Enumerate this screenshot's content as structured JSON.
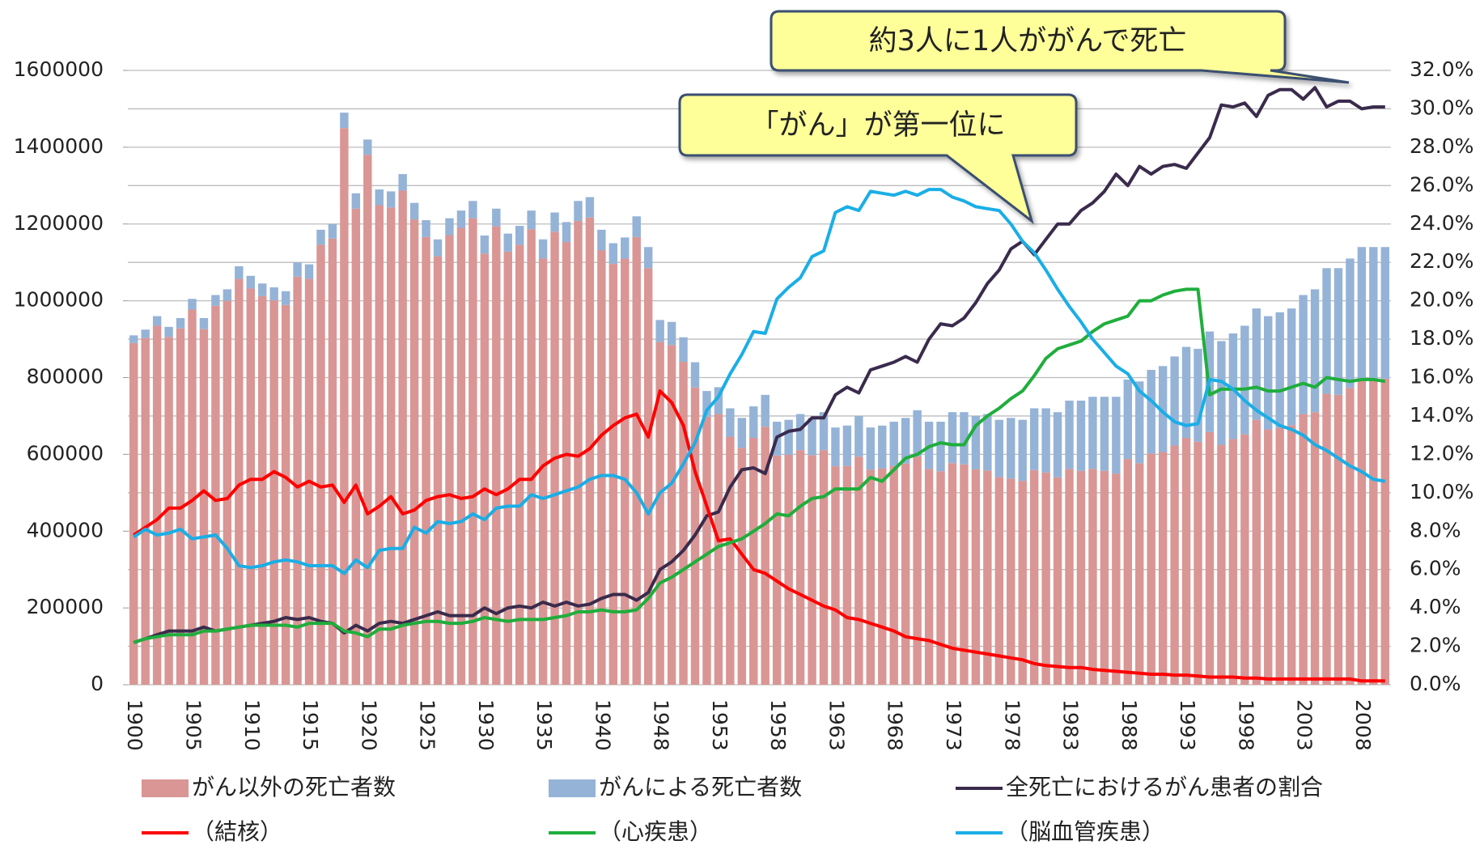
{
  "chart_data": {
    "type": "bar",
    "stacked": true,
    "annotations": [
      "約3人に1人ががんで死亡",
      "「がん」が第一位に"
    ],
    "categories": [
      "1900",
      null,
      null,
      null,
      null,
      "1905",
      null,
      null,
      null,
      null,
      "1910",
      null,
      null,
      null,
      null,
      "1915",
      null,
      null,
      null,
      null,
      "1920",
      null,
      null,
      null,
      null,
      "1925",
      null,
      null,
      null,
      null,
      "1930",
      null,
      null,
      null,
      null,
      "1935",
      null,
      null,
      null,
      null,
      "1940",
      null,
      null,
      null,
      null,
      "1948",
      null,
      null,
      null,
      null,
      "1953",
      null,
      null,
      null,
      null,
      "1958",
      null,
      null,
      null,
      null,
      "1963",
      null,
      null,
      null,
      null,
      "1968",
      null,
      null,
      null,
      null,
      "1973",
      null,
      null,
      null,
      null,
      "1978",
      null,
      null,
      null,
      null,
      "1983",
      null,
      null,
      null,
      null,
      "1988",
      null,
      null,
      null,
      null,
      "1993",
      null,
      null,
      null,
      null,
      "1998",
      null,
      null,
      null,
      null,
      "2003",
      null,
      null,
      null,
      null,
      "2008",
      null,
      null
    ],
    "ylim": [
      0,
      1600000
    ],
    "yticks": [
      0,
      200000,
      400000,
      600000,
      800000,
      1000000,
      1200000,
      1400000,
      1600000
    ],
    "y2lim": [
      0,
      32
    ],
    "y2ticks": [
      {
        "value": 0,
        "label": "0.0%"
      },
      {
        "value": 2,
        "label": "2.0%"
      },
      {
        "value": 4,
        "label": "4.0%"
      },
      {
        "value": 6,
        "label": "6.0%"
      },
      {
        "value": 8,
        "label": "8.0%"
      },
      {
        "value": 10,
        "label": "10.0%"
      },
      {
        "value": 12,
        "label": "12.0%"
      },
      {
        "value": 14,
        "label": "14.0%"
      },
      {
        "value": 16,
        "label": "16.0%"
      },
      {
        "value": 18,
        "label": "18.0%"
      },
      {
        "value": 20,
        "label": "20.0%"
      },
      {
        "value": 22,
        "label": "22.0%"
      },
      {
        "value": 24,
        "label": "24.0%"
      },
      {
        "value": 26,
        "label": "26.0%"
      },
      {
        "value": 28,
        "label": "28.0%"
      },
      {
        "value": 30,
        "label": "30.0%"
      },
      {
        "value": 32,
        "label": "32.0%"
      }
    ],
    "grid": true,
    "legend": "bottom",
    "series": [
      {
        "name": "がん以外の死亡者数",
        "type": "bar",
        "color": "#d99694",
        "values": [
          890000,
          903000,
          935000,
          906000,
          928000,
          977000,
          926000,
          987000,
          1000000,
          1057000,
          1032000,
          1012000,
          1001000,
          989000,
          1063000,
          1057000,
          1146000,
          1162000,
          1450000,
          1240000,
          1380000,
          1249000,
          1243000,
          1287000,
          1212000,
          1166000,
          1116000,
          1171000,
          1190000,
          1215000,
          1123000,
          1194000,
          1128000,
          1146000,
          1186000,
          1110000,
          1180000,
          1153000,
          1208000,
          1217000,
          1132000,
          1096000,
          1110000,
          1166000,
          1085000,
          893000,
          885000,
          841000,
          774000,
          698000,
          705000,
          646000,
          617000,
          643000,
          672000,
          597000,
          599000,
          611000,
          598000,
          611000,
          569000,
          570000,
          594000,
          560000,
          563000,
          570000,
          576000,
          595000,
          562000,
          556000,
          577000,
          574000,
          561000,
          558000,
          541000,
          537000,
          531000,
          559000,
          553000,
          540000,
          562000,
          557000,
          562000,
          557000,
          550000,
          588000,
          577000,
          602000,
          606000,
          623000,
          643000,
          633000,
          658000,
          625000,
          640000,
          652000,
          690000,
          665000,
          669000,
          676000,
          705000,
          710000,
          758000,
          755000,
          773000,
          798000,
          797000,
          797000
        ]
      },
      {
        "name": "がんによる死亡者数",
        "type": "bar",
        "color": "#95b3d7",
        "values": [
          20000,
          22000,
          25000,
          26000,
          27000,
          28000,
          29000,
          28000,
          30000,
          33000,
          33000,
          33000,
          34000,
          36000,
          37000,
          38000,
          39000,
          38000,
          40000,
          40000,
          40000,
          41000,
          42000,
          43000,
          43000,
          44000,
          44000,
          44000,
          45000,
          45000,
          47000,
          46000,
          47000,
          49000,
          49000,
          50000,
          50000,
          52000,
          52000,
          53000,
          53000,
          54000,
          55000,
          54000,
          55000,
          57000,
          60000,
          64000,
          66000,
          67000,
          70000,
          74000,
          78000,
          82000,
          83000,
          88000,
          91000,
          94000,
          97000,
          99000,
          101000,
          105000,
          106000,
          110000,
          112000,
          115000,
          119000,
          120000,
          123000,
          129000,
          133000,
          136000,
          139000,
          147000,
          149000,
          158000,
          159000,
          161000,
          167000,
          170000,
          178000,
          183000,
          188000,
          193000,
          200000,
          207000,
          213000,
          218000,
          224000,
          232000,
          237000,
          242000,
          262000,
          270000,
          275000,
          283000,
          290000,
          295000,
          301000,
          304000,
          310000,
          320000,
          327000,
          330000,
          337000,
          342000,
          343000,
          343000
        ]
      },
      {
        "name": "全死亡におけるがん患者の割合",
        "type": "line",
        "axis": "y2",
        "color": "#3a2b4c",
        "values": [
          2.2,
          2.4,
          2.6,
          2.8,
          2.8,
          2.8,
          3.0,
          2.8,
          2.9,
          3.0,
          3.1,
          3.2,
          3.3,
          3.5,
          3.4,
          3.5,
          3.3,
          3.2,
          2.7,
          3.1,
          2.8,
          3.2,
          3.3,
          3.2,
          3.4,
          3.6,
          3.8,
          3.6,
          3.6,
          3.6,
          4.0,
          3.7,
          4.0,
          4.1,
          4.0,
          4.3,
          4.1,
          4.3,
          4.1,
          4.2,
          4.5,
          4.7,
          4.7,
          4.4,
          4.8,
          6.0,
          6.4,
          7.0,
          7.8,
          8.8,
          9.0,
          10.3,
          11.2,
          11.3,
          11.0,
          12.9,
          13.2,
          13.3,
          13.9,
          13.9,
          15.1,
          15.5,
          15.2,
          16.4,
          16.6,
          16.8,
          17.1,
          16.8,
          18.0,
          18.8,
          18.7,
          19.1,
          19.9,
          20.9,
          21.6,
          22.7,
          23.1,
          22.4,
          23.2,
          24.0,
          24.0,
          24.7,
          25.1,
          25.7,
          26.6,
          26.0,
          27.0,
          26.6,
          27.0,
          27.1,
          26.9,
          27.7,
          28.5,
          30.2,
          30.1,
          30.3,
          29.6,
          30.7,
          31.0,
          31.0,
          30.5,
          31.1,
          30.1,
          30.4,
          30.4,
          30.0,
          30.1,
          30.1
        ]
      },
      {
        "name": "（結核）",
        "type": "line",
        "axis": "y2",
        "color": "#ff0000",
        "values": [
          7.8,
          8.2,
          8.6,
          9.2,
          9.2,
          9.6,
          10.1,
          9.6,
          9.7,
          10.4,
          10.7,
          10.7,
          11.1,
          10.8,
          10.3,
          10.6,
          10.3,
          10.4,
          9.5,
          10.4,
          8.9,
          9.3,
          9.8,
          8.9,
          9.1,
          9.6,
          9.8,
          9.9,
          9.7,
          9.8,
          10.2,
          9.9,
          10.2,
          10.7,
          10.7,
          11.4,
          11.8,
          12.0,
          11.9,
          12.3,
          13.0,
          13.5,
          13.9,
          14.1,
          12.9,
          15.3,
          14.7,
          13.5,
          11.1,
          9.3,
          7.5,
          7.6,
          6.8,
          6.0,
          5.8,
          5.4,
          5.0,
          4.7,
          4.4,
          4.1,
          3.9,
          3.5,
          3.4,
          3.2,
          3.0,
          2.8,
          2.5,
          2.4,
          2.3,
          2.1,
          1.9,
          1.8,
          1.7,
          1.6,
          1.5,
          1.4,
          1.3,
          1.1,
          1.0,
          0.95,
          0.9,
          0.9,
          0.8,
          0.75,
          0.7,
          0.65,
          0.6,
          0.55,
          0.55,
          0.5,
          0.5,
          0.45,
          0.4,
          0.4,
          0.4,
          0.35,
          0.35,
          0.3,
          0.3,
          0.3,
          0.3,
          0.3,
          0.3,
          0.3,
          0.3,
          0.2,
          0.2,
          0.2
        ]
      },
      {
        "name": "（心疾患）",
        "type": "line",
        "axis": "y2",
        "color": "#1fae3c",
        "values": [
          2.2,
          2.4,
          2.5,
          2.6,
          2.6,
          2.6,
          2.8,
          2.8,
          2.9,
          3.0,
          3.1,
          3.1,
          3.1,
          3.1,
          3.0,
          3.2,
          3.2,
          3.2,
          2.8,
          2.7,
          2.5,
          2.9,
          2.9,
          3.1,
          3.2,
          3.3,
          3.3,
          3.2,
          3.2,
          3.3,
          3.5,
          3.4,
          3.3,
          3.4,
          3.4,
          3.4,
          3.5,
          3.6,
          3.8,
          3.8,
          3.9,
          3.8,
          3.8,
          3.9,
          4.5,
          5.3,
          5.6,
          6.0,
          6.4,
          6.8,
          7.2,
          7.4,
          7.6,
          8.0,
          8.4,
          8.9,
          8.8,
          9.3,
          9.7,
          9.8,
          10.2,
          10.2,
          10.2,
          10.8,
          10.6,
          11.2,
          11.8,
          12.0,
          12.4,
          12.6,
          12.5,
          12.5,
          13.5,
          14.0,
          14.4,
          14.9,
          15.3,
          16.1,
          17.0,
          17.5,
          17.7,
          17.9,
          18.4,
          18.8,
          19.0,
          19.2,
          20.0,
          20.0,
          20.3,
          20.5,
          20.6,
          20.6,
          15.1,
          15.4,
          15.4,
          15.4,
          15.5,
          15.3,
          15.3,
          15.5,
          15.7,
          15.5,
          16.0,
          15.9,
          15.8,
          15.9,
          15.9,
          15.8
        ]
      },
      {
        "name": "（脳血管疾患）",
        "type": "line",
        "axis": "y2",
        "color": "#1aaee6",
        "values": [
          7.7,
          8.1,
          7.8,
          7.9,
          8.1,
          7.6,
          7.7,
          7.8,
          7.1,
          6.2,
          6.1,
          6.2,
          6.4,
          6.5,
          6.4,
          6.2,
          6.2,
          6.2,
          5.8,
          6.5,
          6.1,
          7.0,
          7.1,
          7.1,
          8.2,
          7.9,
          8.5,
          8.4,
          8.5,
          8.9,
          8.6,
          9.2,
          9.3,
          9.3,
          9.9,
          9.7,
          9.9,
          10.1,
          10.3,
          10.7,
          10.9,
          10.9,
          10.7,
          10.0,
          8.9,
          10.0,
          10.5,
          11.5,
          12.6,
          14.3,
          15.0,
          16.2,
          17.2,
          18.4,
          18.3,
          20.1,
          20.7,
          21.2,
          22.3,
          22.6,
          24.6,
          24.9,
          24.7,
          25.7,
          25.6,
          25.5,
          25.7,
          25.5,
          25.8,
          25.8,
          25.4,
          25.2,
          24.9,
          24.8,
          24.7,
          24.0,
          23.1,
          22.5,
          21.6,
          20.6,
          19.7,
          18.9,
          18.0,
          17.3,
          16.6,
          16.2,
          15.3,
          14.8,
          14.2,
          13.7,
          13.5,
          13.6,
          15.9,
          15.8,
          15.4,
          14.8,
          14.3,
          13.9,
          13.5,
          13.3,
          13.0,
          12.5,
          12.2,
          11.8,
          11.4,
          11.1,
          10.7,
          10.6
        ]
      }
    ]
  }
}
